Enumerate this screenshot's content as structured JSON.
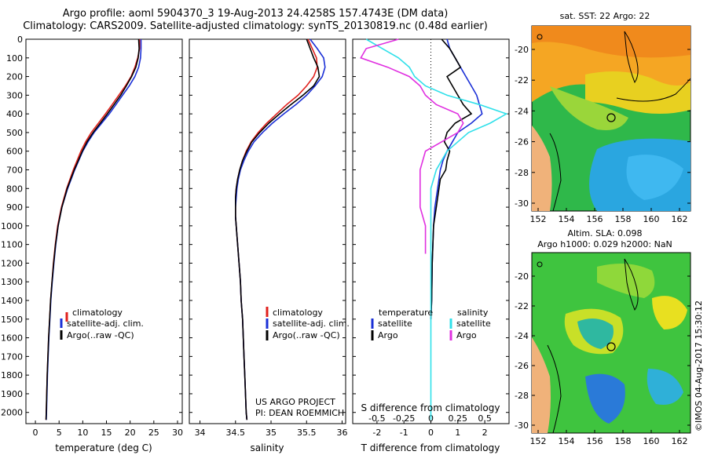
{
  "header": {
    "line1": "Argo profile: aoml 5904370_3 19-Aug-2013 24.4258S 157.4743E (DM data)",
    "line2": "Climatology: CARS2009. Satellite-adjusted climatology: synTS_20130819.nc (0.48d earlier)"
  },
  "colors": {
    "climatology": "#e0201c",
    "satellite": "#1a2fd6",
    "argo": "#000000",
    "sal_sat": "#30e0ea",
    "sal_argo": "#e030e0"
  },
  "depth_ticks": [
    "0",
    "100",
    "200",
    "300",
    "400",
    "500",
    "600",
    "700",
    "800",
    "900",
    "1000",
    "1100",
    "1200",
    "1300",
    "1400",
    "1500",
    "1600",
    "1700",
    "1800",
    "1900",
    "2000"
  ],
  "chart_data": [
    {
      "type": "line",
      "xlabel": "temperature (deg C)",
      "xticks": [
        "0",
        "5",
        "10",
        "15",
        "20",
        "25",
        "30"
      ],
      "xlim": [
        -2,
        31
      ],
      "ylim": [
        2060,
        0
      ],
      "legend": [
        "climatology",
        "satellite-adj. clim.",
        "Argo(..raw -QC)"
      ],
      "series": [
        {
          "name": "climatology",
          "color": "#e0201c",
          "depth": [
            0,
            50,
            100,
            150,
            200,
            250,
            300,
            350,
            400,
            450,
            500,
            550,
            600,
            700,
            800,
            900,
            1000,
            1100,
            1200,
            1300,
            1400,
            1500,
            1600,
            1700,
            1800,
            1900,
            2000,
            2040
          ],
          "values": [
            22,
            22,
            21.6,
            21,
            20.2,
            19,
            17.6,
            16.2,
            14.8,
            13.3,
            11.8,
            10.6,
            9.6,
            8,
            6.6,
            5.5,
            4.7,
            4.2,
            3.8,
            3.5,
            3.2,
            3,
            2.8,
            2.65,
            2.5,
            2.4,
            2.3,
            2.25
          ]
        },
        {
          "name": "satellite-adj. clim.",
          "color": "#1a2fd6",
          "depth": [
            0,
            50,
            100,
            150,
            200,
            250,
            300,
            350,
            400,
            450,
            500,
            550,
            600,
            700,
            800,
            900,
            1000,
            1100,
            1200,
            1300,
            1400,
            1500,
            1600,
            1700,
            1800,
            1900,
            2000,
            2040
          ],
          "values": [
            22.3,
            22.3,
            22.2,
            21.8,
            21,
            19.8,
            18.4,
            17,
            15.6,
            14,
            12.4,
            11.1,
            10,
            8.3,
            6.8,
            5.6,
            4.8,
            4.3,
            3.9,
            3.55,
            3.25,
            3.05,
            2.85,
            2.7,
            2.55,
            2.45,
            2.35,
            2.3
          ]
        },
        {
          "name": "Argo(..raw -QC)",
          "color": "#000000",
          "depth": [
            0,
            50,
            100,
            150,
            200,
            250,
            300,
            350,
            400,
            450,
            500,
            550,
            600,
            700,
            800,
            900,
            1000,
            1100,
            1200,
            1300,
            1400,
            1500,
            1600,
            1700,
            1800,
            1900,
            2000,
            2040
          ],
          "values": [
            21.8,
            21.9,
            21.7,
            21.2,
            20.3,
            19.2,
            18,
            16.6,
            15.2,
            13.7,
            12.2,
            10.9,
            9.9,
            8.2,
            6.7,
            5.6,
            4.8,
            4.25,
            3.85,
            3.5,
            3.2,
            3,
            2.8,
            2.65,
            2.5,
            2.4,
            2.3,
            2.25
          ]
        }
      ]
    },
    {
      "type": "line",
      "xlabel": "salinity",
      "xticks": [
        "34",
        "34.5",
        "35",
        "35.5",
        "36"
      ],
      "xlim": [
        33.85,
        36.05
      ],
      "ylim": [
        2060,
        0
      ],
      "legend": [
        "climatology",
        "satellite-adj. clim.",
        "Argo(..raw -QC)"
      ],
      "series": [
        {
          "name": "climatology",
          "color": "#e0201c",
          "depth": [
            0,
            50,
            100,
            150,
            200,
            250,
            300,
            350,
            400,
            450,
            500,
            550,
            600,
            650,
            700,
            750,
            800,
            850,
            900,
            950,
            1000,
            1100,
            1200,
            1300,
            1400,
            1500,
            1600,
            1700,
            1800,
            1900,
            2000,
            2040
          ],
          "values": [
            35.52,
            35.58,
            35.64,
            35.65,
            35.6,
            35.5,
            35.38,
            35.22,
            35.08,
            34.94,
            34.82,
            34.72,
            34.65,
            34.6,
            34.56,
            34.53,
            34.51,
            34.5,
            34.5,
            34.5,
            34.51,
            34.53,
            34.55,
            34.57,
            34.58,
            34.6,
            34.61,
            34.62,
            34.63,
            34.64,
            34.65,
            34.66
          ]
        },
        {
          "name": "satellite-adj. clim.",
          "color": "#1a2fd6",
          "depth": [
            0,
            50,
            100,
            150,
            200,
            250,
            300,
            350,
            400,
            450,
            500,
            550,
            600,
            650,
            700,
            750,
            800,
            850,
            900,
            950,
            1000,
            1100,
            1200,
            1300,
            1400,
            1500,
            1600,
            1700,
            1800,
            1900,
            2000,
            2040
          ],
          "values": [
            35.55,
            35.65,
            35.74,
            35.76,
            35.72,
            35.62,
            35.5,
            35.35,
            35.18,
            35.02,
            34.88,
            34.76,
            34.68,
            34.62,
            34.57,
            34.54,
            34.52,
            34.51,
            34.5,
            34.5,
            34.51,
            34.53,
            34.55,
            34.57,
            34.58,
            34.6,
            34.61,
            34.62,
            34.63,
            34.64,
            34.65,
            34.66
          ]
        },
        {
          "name": "Argo(..raw -QC)",
          "color": "#000000",
          "depth": [
            0,
            50,
            100,
            150,
            200,
            250,
            300,
            350,
            400,
            450,
            500,
            550,
            600,
            650,
            700,
            750,
            800,
            850,
            900,
            950,
            1000,
            1100,
            1200,
            1300,
            1400,
            1500,
            1600,
            1700,
            1800,
            1900,
            2000,
            2040
          ],
          "values": [
            35.5,
            35.55,
            35.6,
            35.66,
            35.68,
            35.6,
            35.45,
            35.28,
            35.12,
            34.97,
            34.84,
            34.73,
            34.66,
            34.6,
            34.56,
            34.53,
            34.51,
            34.5,
            34.5,
            34.5,
            34.51,
            34.53,
            34.55,
            34.57,
            34.58,
            34.6,
            34.61,
            34.62,
            34.63,
            34.64,
            34.65,
            34.66
          ]
        }
      ]
    },
    {
      "type": "line",
      "xlabel": "T difference from climatology",
      "xlabel_top": "S difference from climatology",
      "xticks": [
        "-2",
        "-1",
        "0",
        "1",
        "2"
      ],
      "xticks_top": [
        "-0.5",
        "-0.25",
        "0",
        "0.25",
        "0.5"
      ],
      "xlim": [
        -2.9,
        2.9
      ],
      "ylim": [
        2060,
        0
      ],
      "legend_left_title": "temperature",
      "legend_right_title": "salinity",
      "legend": [
        "satellite",
        "Argo",
        "satellite",
        "Argo"
      ],
      "series": [
        {
          "name": "satellite",
          "color": "#1a2fd6",
          "depth": [
            0,
            50,
            100,
            150,
            200,
            250,
            300,
            350,
            400,
            450,
            500,
            550,
            600,
            650,
            700,
            750,
            800,
            900,
            1000,
            1200,
            1400,
            1500
          ],
          "values": [
            0.6,
            0.7,
            0.9,
            1.1,
            1.3,
            1.5,
            1.7,
            1.8,
            1.9,
            1.5,
            1.0,
            0.8,
            0.6,
            0.45,
            0.35,
            0.3,
            0.25,
            0.15,
            0.1,
            0.05,
            0.03,
            0.0
          ]
        },
        {
          "name": "Argo",
          "color": "#000000",
          "depth": [
            0,
            50,
            100,
            150,
            200,
            250,
            300,
            350,
            400,
            450,
            500,
            550,
            600,
            650,
            700,
            750,
            800,
            900,
            1000,
            1200,
            1400,
            1500
          ],
          "values": [
            0.4,
            0.7,
            0.9,
            1.1,
            0.6,
            0.8,
            1.0,
            1.2,
            1.5,
            0.9,
            0.6,
            0.5,
            0.7,
            0.6,
            0.55,
            0.35,
            0.3,
            0.2,
            0.1,
            0.05,
            0.03,
            0.0
          ]
        },
        {
          "name": "satellite",
          "color": "#30e0ea",
          "depth": [
            0,
            50,
            100,
            150,
            200,
            250,
            300,
            350,
            400,
            450,
            500,
            550,
            600,
            700,
            800,
            900,
            1000,
            1200,
            1400,
            1500,
            1700,
            1900,
            2040
          ],
          "values": [
            -0.6,
            -0.45,
            -0.3,
            -0.2,
            -0.15,
            -0.05,
            0.15,
            0.45,
            0.7,
            0.55,
            0.35,
            0.25,
            0.15,
            0.05,
            0.0,
            0.0,
            0.0,
            0.0,
            0.0,
            0.0,
            0.0,
            0.0,
            0.0
          ]
        },
        {
          "name": "Argo",
          "color": "#e030e0",
          "depth": [
            0,
            50,
            100,
            150,
            200,
            250,
            300,
            350,
            400,
            450,
            500,
            550,
            600,
            700,
            800,
            900,
            1000,
            1100,
            1150
          ],
          "values": [
            -0.3,
            -0.6,
            -0.65,
            -0.4,
            -0.2,
            -0.1,
            -0.05,
            0.05,
            0.25,
            0.3,
            0.25,
            0.1,
            -0.05,
            -0.1,
            -0.1,
            -0.1,
            -0.05,
            -0.05,
            -0.05
          ]
        }
      ]
    }
  ],
  "annotation": {
    "project": "US ARGO PROJECT",
    "pi": "PI: DEAN ROEMMICH"
  },
  "map_sst": {
    "title": "sat. SST: 22 Argo: 22",
    "lat_ticks": [
      "-20",
      "-22",
      "-24",
      "-26",
      "-28",
      "-30"
    ],
    "lon_ticks": [
      "152",
      "154",
      "156",
      "158",
      "160",
      "162"
    ]
  },
  "map_sla": {
    "title_line1": "Altim. SLA: 0.098",
    "title_line2": "Argo h1000: 0.029 h2000: NaN",
    "lat_ticks": [
      "-20",
      "-22",
      "-24",
      "-26",
      "-28",
      "-30"
    ],
    "lon_ticks": [
      "152",
      "154",
      "156",
      "158",
      "160",
      "162"
    ]
  },
  "credit": "©IMOS 04-Aug-2017 15:30:12"
}
